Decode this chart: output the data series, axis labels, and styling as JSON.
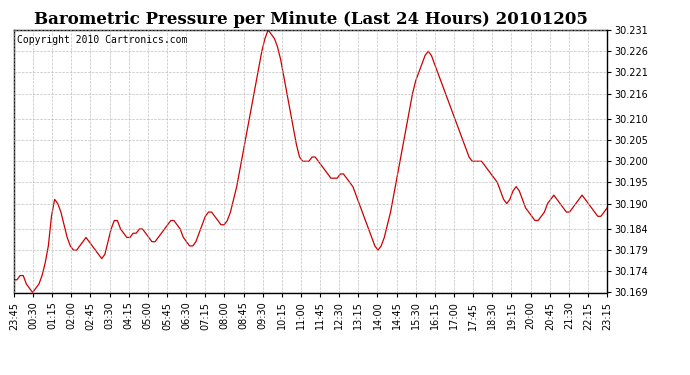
{
  "title": "Barometric Pressure per Minute (Last 24 Hours) 20101205",
  "copyright": "Copyright 2010 Cartronics.com",
  "line_color": "#cc0000",
  "background_color": "#ffffff",
  "grid_color": "#b0b0b0",
  "ylim": [
    30.169,
    30.231
  ],
  "yticks": [
    30.169,
    30.174,
    30.179,
    30.184,
    30.19,
    30.195,
    30.2,
    30.205,
    30.21,
    30.216,
    30.221,
    30.226,
    30.231
  ],
  "xtick_labels": [
    "23:45",
    "00:30",
    "01:15",
    "02:00",
    "02:45",
    "03:30",
    "04:15",
    "05:00",
    "05:45",
    "06:30",
    "07:15",
    "08:00",
    "08:45",
    "09:30",
    "10:15",
    "11:00",
    "11:45",
    "12:30",
    "13:15",
    "14:00",
    "14:45",
    "15:30",
    "16:15",
    "17:00",
    "17:45",
    "18:30",
    "19:15",
    "20:00",
    "20:45",
    "21:30",
    "22:15",
    "23:15"
  ],
  "title_fontsize": 12,
  "tick_fontsize": 7,
  "copyright_fontsize": 7,
  "values": [
    30.172,
    30.172,
    30.173,
    30.173,
    30.171,
    30.17,
    30.169,
    30.17,
    30.171,
    30.173,
    30.176,
    30.18,
    30.187,
    30.191,
    30.19,
    30.188,
    30.185,
    30.182,
    30.18,
    30.179,
    30.179,
    30.18,
    30.181,
    30.182,
    30.181,
    30.18,
    30.179,
    30.178,
    30.177,
    30.178,
    30.181,
    30.184,
    30.186,
    30.186,
    30.184,
    30.183,
    30.182,
    30.182,
    30.183,
    30.183,
    30.184,
    30.184,
    30.183,
    30.182,
    30.181,
    30.181,
    30.182,
    30.183,
    30.184,
    30.185,
    30.186,
    30.186,
    30.185,
    30.184,
    30.182,
    30.181,
    30.18,
    30.18,
    30.181,
    30.183,
    30.185,
    30.187,
    30.188,
    30.188,
    30.187,
    30.186,
    30.185,
    30.185,
    30.186,
    30.188,
    30.191,
    30.194,
    30.198,
    30.202,
    30.206,
    30.21,
    30.214,
    30.218,
    30.222,
    30.226,
    30.229,
    30.231,
    30.23,
    30.229,
    30.227,
    30.224,
    30.22,
    30.216,
    30.212,
    30.208,
    30.204,
    30.201,
    30.2,
    30.2,
    30.2,
    30.201,
    30.201,
    30.2,
    30.199,
    30.198,
    30.197,
    30.196,
    30.196,
    30.196,
    30.197,
    30.197,
    30.196,
    30.195,
    30.194,
    30.192,
    30.19,
    30.188,
    30.186,
    30.184,
    30.182,
    30.18,
    30.179,
    30.18,
    30.182,
    30.185,
    30.188,
    30.192,
    30.196,
    30.2,
    30.204,
    30.208,
    30.212,
    30.216,
    30.219,
    30.221,
    30.223,
    30.225,
    30.226,
    30.225,
    30.223,
    30.221,
    30.219,
    30.217,
    30.215,
    30.213,
    30.211,
    30.209,
    30.207,
    30.205,
    30.203,
    30.201,
    30.2,
    30.2,
    30.2,
    30.2,
    30.199,
    30.198,
    30.197,
    30.196,
    30.195,
    30.193,
    30.191,
    30.19,
    30.191,
    30.193,
    30.194,
    30.193,
    30.191,
    30.189,
    30.188,
    30.187,
    30.186,
    30.186,
    30.187,
    30.188,
    30.19,
    30.191,
    30.192,
    30.191,
    30.19,
    30.189,
    30.188,
    30.188,
    30.189,
    30.19,
    30.191,
    30.192,
    30.191,
    30.19,
    30.189,
    30.188,
    30.187,
    30.187,
    30.188,
    30.189
  ]
}
